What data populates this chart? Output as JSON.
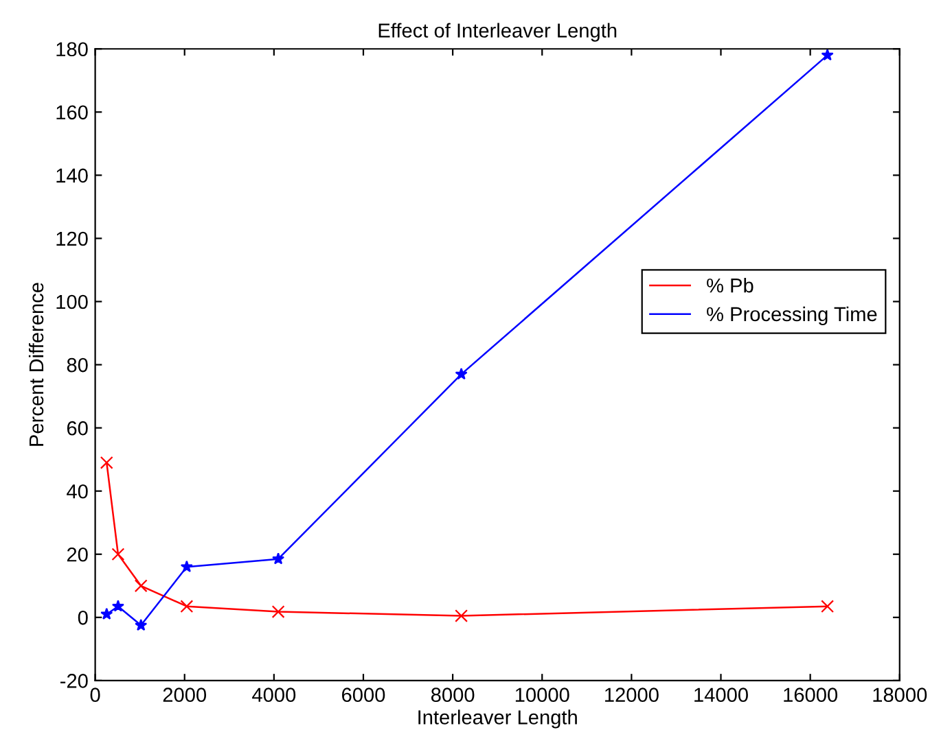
{
  "chart_data": {
    "type": "line",
    "title": "Effect of Interleaver Length",
    "xlabel": "Interleaver Length",
    "ylabel": "Percent Difference",
    "x": [
      256,
      512,
      1024,
      2048,
      4096,
      8192,
      16384
    ],
    "series": [
      {
        "name": "% Pb",
        "color": "#ff0000",
        "marker": "cross",
        "values": [
          49,
          20,
          10,
          3.5,
          1.8,
          0.5,
          3.5
        ]
      },
      {
        "name": "% Processing Time",
        "color": "#0000ff",
        "marker": "star",
        "values": [
          1,
          3.5,
          -2.5,
          16,
          18.5,
          77,
          178
        ]
      }
    ],
    "xlim": [
      0,
      18000
    ],
    "xticks": [
      0,
      2000,
      4000,
      6000,
      8000,
      10000,
      12000,
      14000,
      16000,
      18000
    ],
    "ylim": [
      -20,
      180
    ],
    "yticks": [
      -20,
      0,
      20,
      40,
      60,
      80,
      100,
      120,
      140,
      160,
      180
    ],
    "grid": false,
    "legend": "right",
    "line_style": "solid"
  }
}
